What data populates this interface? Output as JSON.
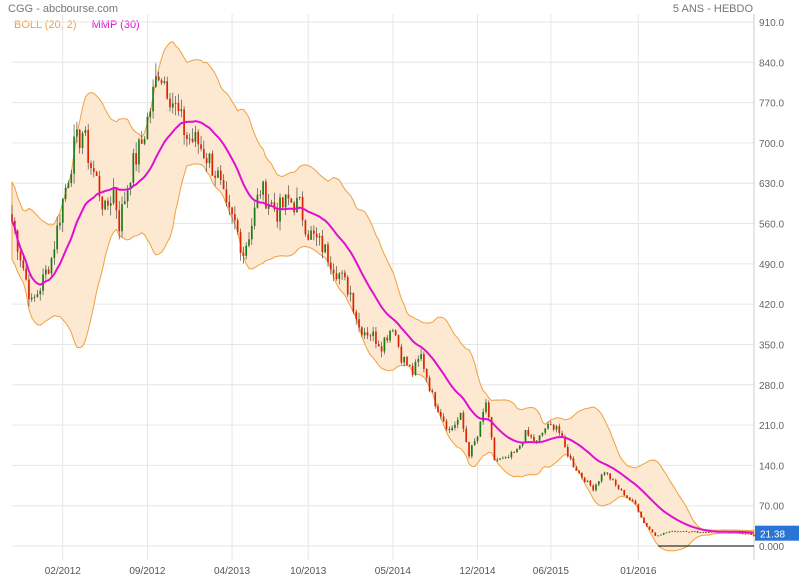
{
  "header": {
    "source": "CGG - abcbourse.com",
    "period": "5 ANS - HEBDO"
  },
  "legend": {
    "boll": "BOLL (20, 2)",
    "mmp": "MMP (30)"
  },
  "colors": {
    "up": "#1a7a1a",
    "down": "#dd2200",
    "band_fill": "#fde9d1",
    "band_stroke": "#f0a040",
    "mmp": "#e010d0",
    "last_label_bg": "#2a74d6",
    "grid": "#e6e6e6"
  },
  "chart_data": {
    "type": "candlestick",
    "yticks": [
      "910.0",
      "840.0",
      "770.0",
      "700.0",
      "630.0",
      "560.0",
      "490.0",
      "420.0",
      "350.0",
      "280.0",
      "210.0",
      "140.0",
      "70.00",
      "0.000"
    ],
    "ylim": [
      0,
      910
    ],
    "xticks": [
      {
        "label": "02/2012",
        "week": 18
      },
      {
        "label": "09/2012",
        "week": 48
      },
      {
        "label": "04/2013",
        "week": 78
      },
      {
        "label": "10/2013",
        "week": 105
      },
      {
        "label": "05/2014",
        "week": 135
      },
      {
        "label": "12/2014",
        "week": 165
      },
      {
        "label": "06/2015",
        "week": 191
      },
      {
        "label": "01/2016",
        "week": 222
      }
    ],
    "x_range_weeks": [
      0,
      263
    ],
    "last_value": "21.38",
    "reference_line": 0,
    "anchors": [
      [
        0,
        565
      ],
      [
        3,
        505
      ],
      [
        7,
        420
      ],
      [
        10,
        450
      ],
      [
        14,
        500
      ],
      [
        18,
        600
      ],
      [
        22,
        690
      ],
      [
        25,
        720
      ],
      [
        28,
        660
      ],
      [
        30,
        635
      ],
      [
        33,
        580
      ],
      [
        36,
        620
      ],
      [
        38,
        560
      ],
      [
        42,
        650
      ],
      [
        46,
        700
      ],
      [
        49,
        760
      ],
      [
        52,
        830
      ],
      [
        55,
        800
      ],
      [
        58,
        760
      ],
      [
        62,
        710
      ],
      [
        66,
        700
      ],
      [
        70,
        670
      ],
      [
        73,
        640
      ],
      [
        76,
        580
      ],
      [
        79,
        560
      ],
      [
        82,
        510
      ],
      [
        85,
        560
      ],
      [
        88,
        620
      ],
      [
        91,
        600
      ],
      [
        94,
        580
      ],
      [
        98,
        600
      ],
      [
        102,
        590
      ],
      [
        105,
        545
      ],
      [
        110,
        520
      ],
      [
        115,
        480
      ],
      [
        120,
        440
      ],
      [
        123,
        380
      ],
      [
        127,
        370
      ],
      [
        131,
        350
      ],
      [
        135,
        385
      ],
      [
        138,
        330
      ],
      [
        142,
        300
      ],
      [
        145,
        330
      ],
      [
        149,
        260
      ],
      [
        152,
        230
      ],
      [
        155,
        200
      ],
      [
        159,
        225
      ],
      [
        162,
        160
      ],
      [
        165,
        190
      ],
      [
        168,
        250
      ],
      [
        171,
        150
      ],
      [
        175,
        150
      ],
      [
        179,
        165
      ],
      [
        182,
        195
      ],
      [
        186,
        180
      ],
      [
        189,
        205
      ],
      [
        193,
        210
      ],
      [
        196,
        170
      ],
      [
        199,
        140
      ],
      [
        202,
        120
      ],
      [
        206,
        100
      ],
      [
        210,
        130
      ],
      [
        214,
        105
      ],
      [
        218,
        85
      ],
      [
        221,
        72
      ],
      [
        224,
        40
      ],
      [
        228,
        18
      ],
      [
        233,
        25
      ],
      [
        238,
        26
      ],
      [
        244,
        24
      ],
      [
        250,
        25
      ],
      [
        256,
        24
      ],
      [
        261,
        21.38
      ]
    ]
  }
}
